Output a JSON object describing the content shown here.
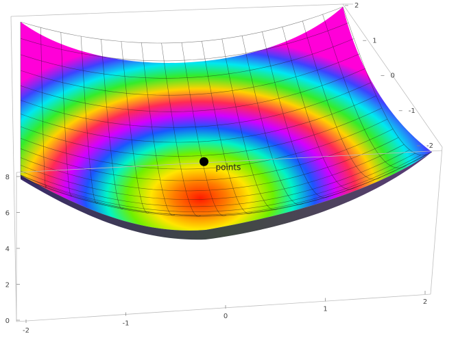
{
  "chart_data": {
    "type": "surface3d",
    "title": "",
    "xlabel": "",
    "ylabel": "",
    "zlabel": "",
    "x_range": [
      -2,
      2
    ],
    "y_range": [
      -2,
      2
    ],
    "z_range": [
      0,
      8
    ],
    "x_ticks": [
      "-2",
      "-1",
      "0",
      "1",
      "2"
    ],
    "y_ticks": [
      "-2",
      "-1",
      "0",
      "1",
      "2"
    ],
    "z_ticks": [
      "0",
      "2",
      "4",
      "6",
      "8"
    ],
    "surface": {
      "function": "x^2 + y^2",
      "coloring": "hue cycles with distance from center",
      "mesh": "on"
    },
    "points": [
      {
        "x": 0,
        "y": 0,
        "z": 0,
        "label": "points",
        "color": "#000000"
      }
    ],
    "box": true,
    "grid": false,
    "legend": "none"
  }
}
